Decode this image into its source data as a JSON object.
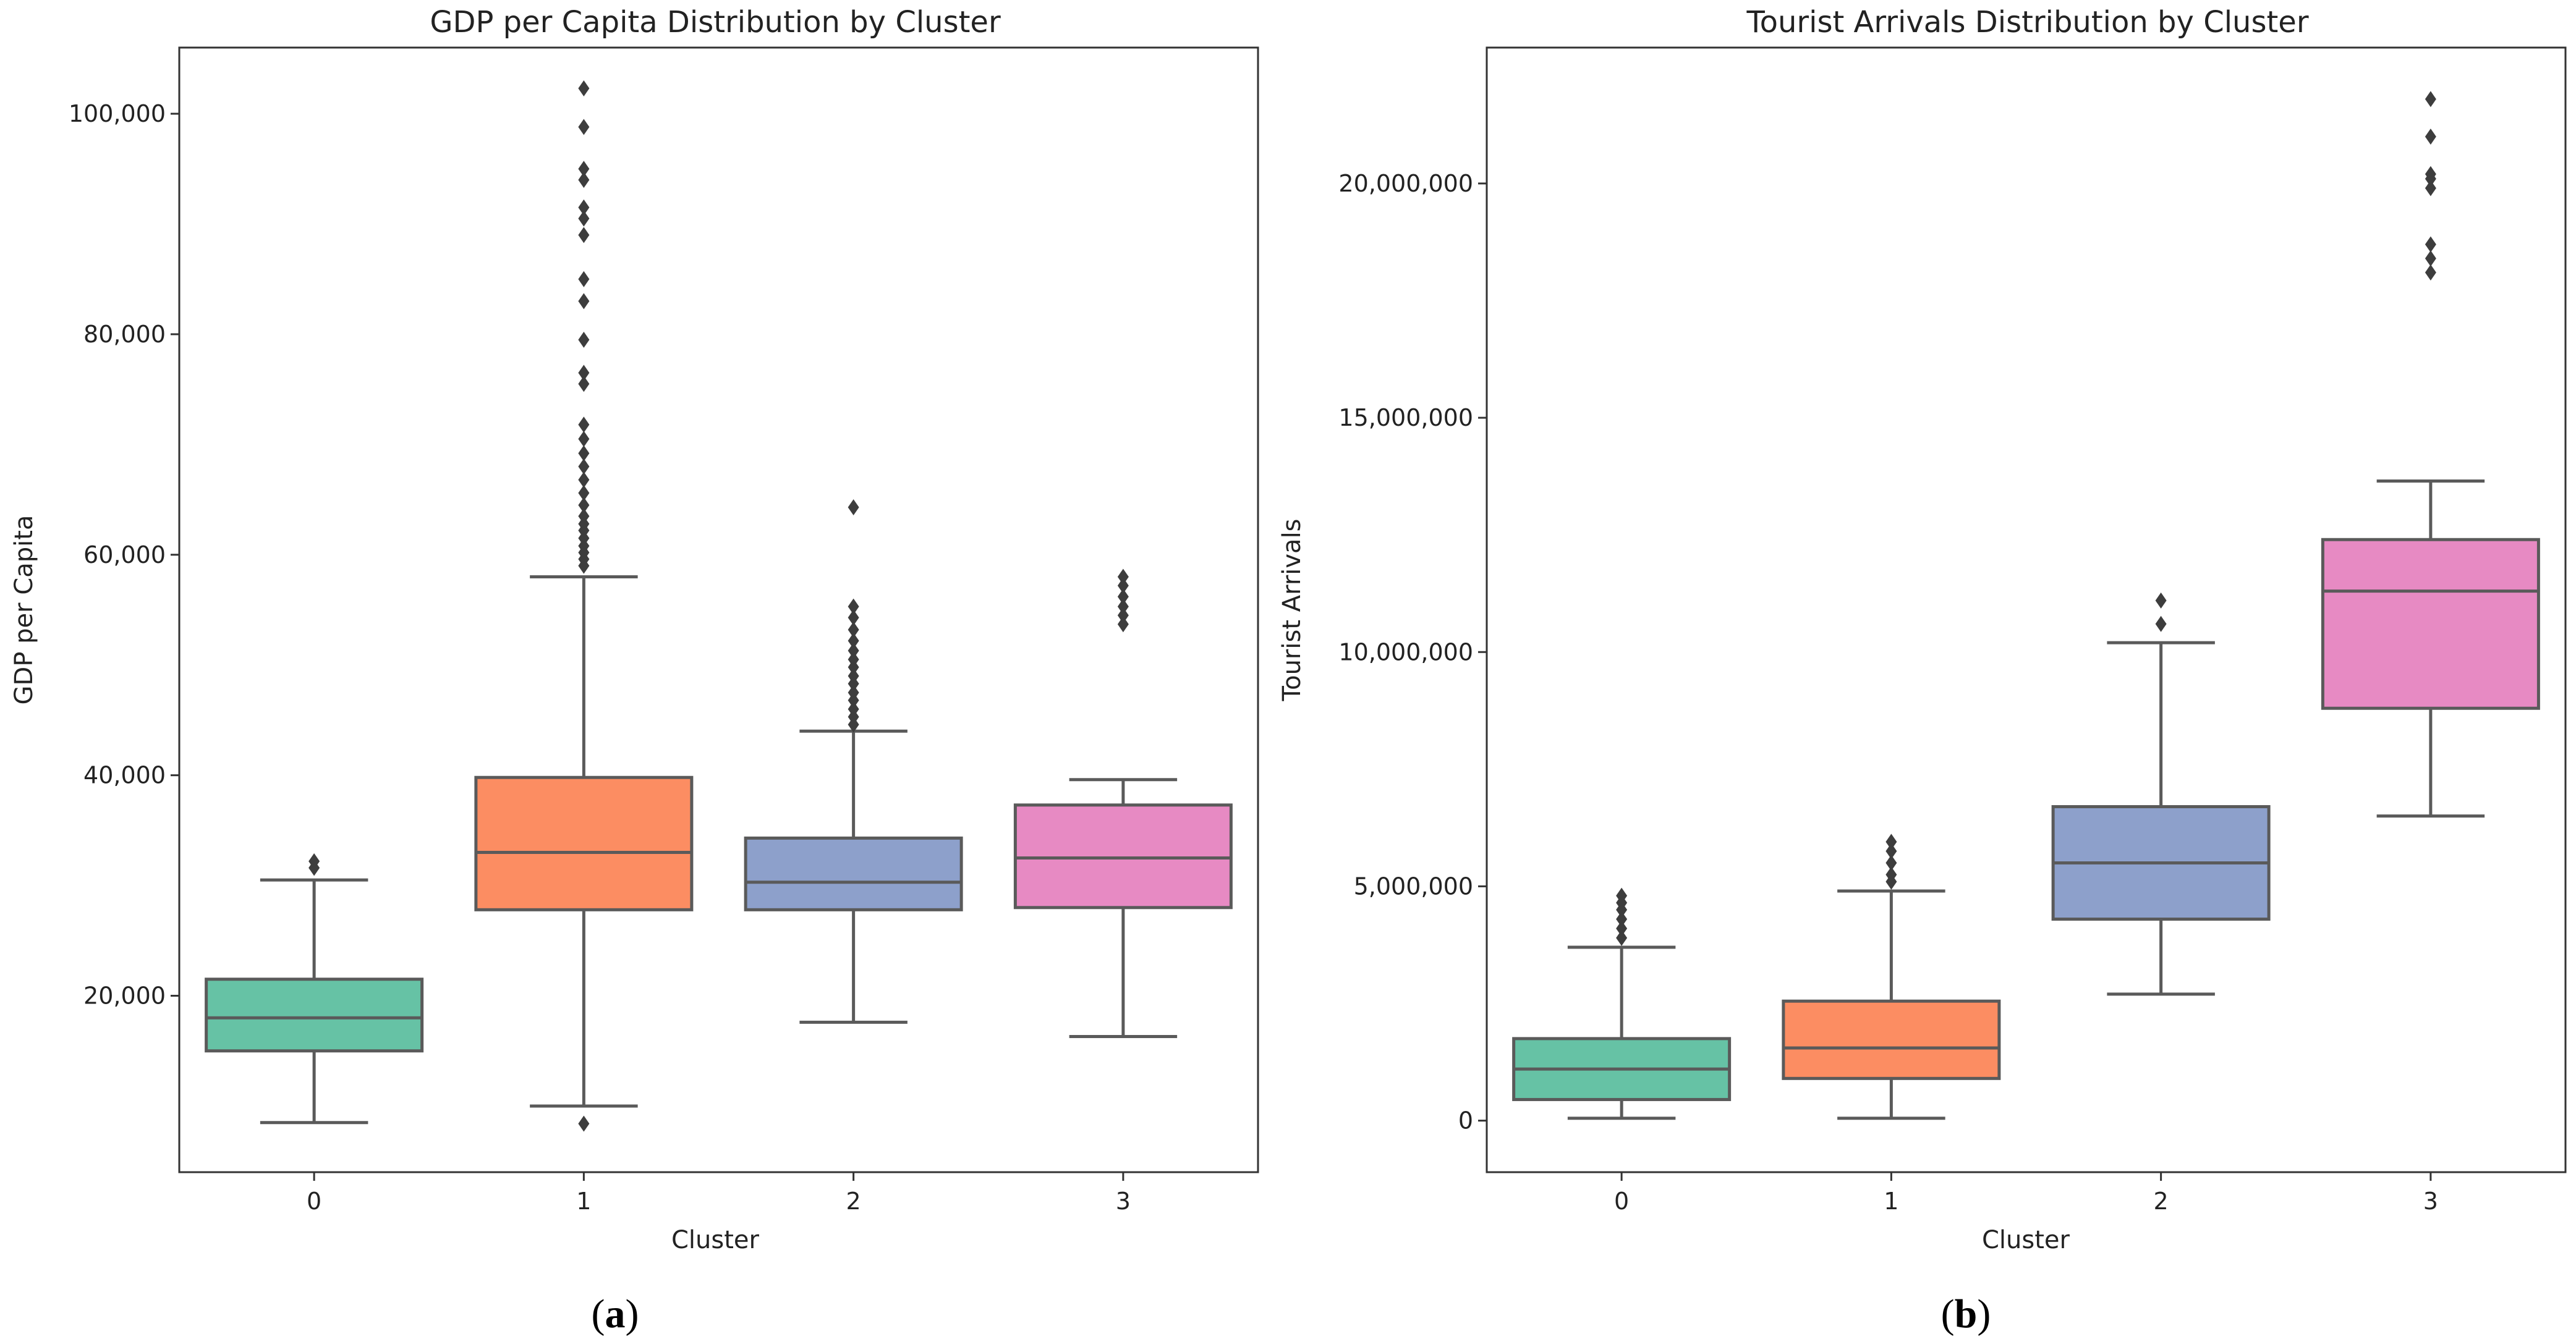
{
  "chart_data": [
    {
      "type": "box",
      "panel_label": "a",
      "title": "GDP per Capita Distribution by Cluster",
      "xlabel": "Cluster",
      "ylabel": "GDP per Capita",
      "categories": [
        "0",
        "1",
        "2",
        "3"
      ],
      "ylim": [
        4000,
        106000
      ],
      "y_ticks": [
        20000,
        40000,
        60000,
        80000,
        100000
      ],
      "y_tick_labels": [
        "20,000",
        "40,000",
        "60,000",
        "80,000",
        "100,000"
      ],
      "grid": false,
      "colors": [
        "#66c2a5",
        "#fc8d62",
        "#8da0cb",
        "#e78ac3"
      ],
      "boxes": [
        {
          "category": "0",
          "whisker_low": 8500,
          "q1": 15000,
          "median": 18000,
          "q3": 21500,
          "whisker_high": 30500,
          "outliers": [
            31600,
            32200
          ]
        },
        {
          "category": "1",
          "whisker_low": 10000,
          "q1": 27800,
          "median": 33000,
          "q3": 39800,
          "whisker_high": 58000,
          "outliers": [
            8400,
            59000,
            59600,
            60200,
            60800,
            61500,
            62200,
            62800,
            63500,
            64500,
            65600,
            66800,
            68000,
            69200,
            70500,
            71800,
            75500,
            76500,
            79500,
            83000,
            85000,
            89000,
            90500,
            91500,
            94000,
            95000,
            98800,
            102300
          ]
        },
        {
          "category": "2",
          "whisker_low": 17600,
          "q1": 27800,
          "median": 30300,
          "q3": 34300,
          "whisker_high": 44000,
          "outliers": [
            44600,
            45300,
            46000,
            46800,
            47500,
            48300,
            49000,
            49800,
            50500,
            51300,
            52200,
            53200,
            54300,
            55300,
            64300
          ]
        },
        {
          "category": "3",
          "whisker_low": 16300,
          "q1": 28000,
          "median": 32500,
          "q3": 37300,
          "whisker_high": 39600,
          "outliers": [
            53700,
            54500,
            55300,
            56200,
            57200,
            58000
          ]
        }
      ]
    },
    {
      "type": "box",
      "panel_label": "b",
      "title": "Tourist Arrivals Distribution by Cluster",
      "xlabel": "Cluster",
      "ylabel": "Tourist Arrivals",
      "categories": [
        "0",
        "1",
        "2",
        "3"
      ],
      "ylim": [
        -1100000,
        22900000
      ],
      "y_ticks": [
        0,
        5000000,
        10000000,
        15000000,
        20000000
      ],
      "y_tick_labels": [
        "0",
        "5,000,000",
        "10,000,000",
        "15,000,000",
        "20,000,000"
      ],
      "grid": false,
      "colors": [
        "#66c2a5",
        "#fc8d62",
        "#8da0cb",
        "#e78ac3"
      ],
      "boxes": [
        {
          "category": "0",
          "whisker_low": 50000,
          "q1": 450000,
          "median": 1100000,
          "q3": 1750000,
          "whisker_high": 3700000,
          "outliers": [
            3900000,
            4100000,
            4300000,
            4500000,
            4650000,
            4800000
          ]
        },
        {
          "category": "1",
          "whisker_low": 50000,
          "q1": 900000,
          "median": 1550000,
          "q3": 2550000,
          "whisker_high": 4900000,
          "outliers": [
            5100000,
            5250000,
            5500000,
            5750000,
            5950000
          ]
        },
        {
          "category": "2",
          "whisker_low": 2700000,
          "q1": 4300000,
          "median": 5500000,
          "q3": 6700000,
          "whisker_high": 10200000,
          "outliers": [
            10600000,
            11100000
          ]
        },
        {
          "category": "3",
          "whisker_low": 6500000,
          "q1": 8800000,
          "median": 11300000,
          "q3": 12400000,
          "whisker_high": 13650000,
          "outliers": [
            18100000,
            18400000,
            18700000,
            19900000,
            20100000,
            20200000,
            21000000,
            21800000
          ]
        }
      ]
    }
  ]
}
